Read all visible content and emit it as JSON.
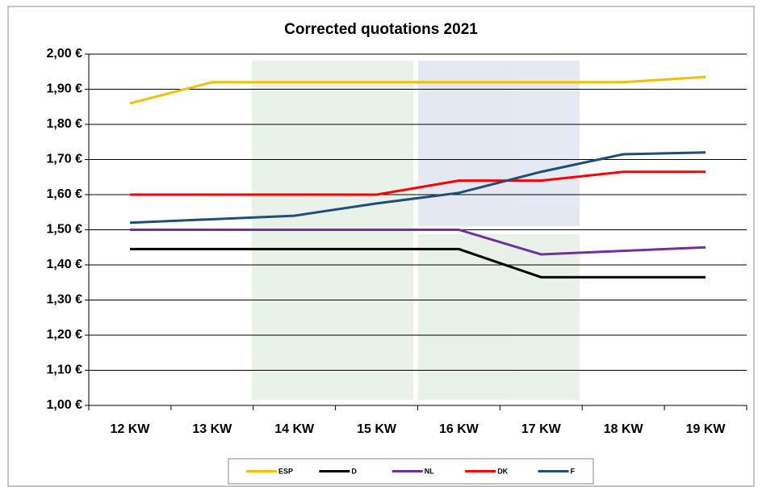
{
  "chart_data": {
    "type": "line",
    "title": "Corrected quotations 2021",
    "categories": [
      "12 KW",
      "13 KW",
      "14 KW",
      "15 KW",
      "16 KW",
      "17 KW",
      "18 KW",
      "19 KW"
    ],
    "series": [
      {
        "name": "ESP",
        "color": "#f5c000",
        "values": [
          1.86,
          1.92,
          1.92,
          1.92,
          1.92,
          1.92,
          1.92,
          1.935
        ]
      },
      {
        "name": "D",
        "color": "#000000",
        "values": [
          1.445,
          1.445,
          1.445,
          1.445,
          1.445,
          1.365,
          1.365,
          1.365
        ]
      },
      {
        "name": "NL",
        "color": "#7030a0",
        "values": [
          1.5,
          1.5,
          1.5,
          1.5,
          1.5,
          1.43,
          1.44,
          1.45
        ]
      },
      {
        "name": "DK",
        "color": "#ff0000",
        "values": [
          1.6,
          1.6,
          1.6,
          1.6,
          1.64,
          1.64,
          1.665,
          1.665
        ]
      },
      {
        "name": "F",
        "color": "#1f4e79",
        "values": [
          1.52,
          1.53,
          1.54,
          1.575,
          1.605,
          1.665,
          1.715,
          1.72
        ]
      }
    ],
    "ylim": [
      1.0,
      2.0
    ],
    "yticks": [
      {
        "value": 1.0,
        "label": "1,00 €"
      },
      {
        "value": 1.1,
        "label": "1,10 €"
      },
      {
        "value": 1.2,
        "label": "1,20 €"
      },
      {
        "value": 1.3,
        "label": "1,30 €"
      },
      {
        "value": 1.4,
        "label": "1,40 €"
      },
      {
        "value": 1.5,
        "label": "1,50 €"
      },
      {
        "value": 1.6,
        "label": "1,60 €"
      },
      {
        "value": 1.7,
        "label": "1,70 €"
      },
      {
        "value": 1.8,
        "label": "1,80 €"
      },
      {
        "value": 1.9,
        "label": "1,90 €"
      },
      {
        "value": 2.0,
        "label": "2,00 €"
      }
    ],
    "grid": true,
    "legend": "bottom"
  }
}
